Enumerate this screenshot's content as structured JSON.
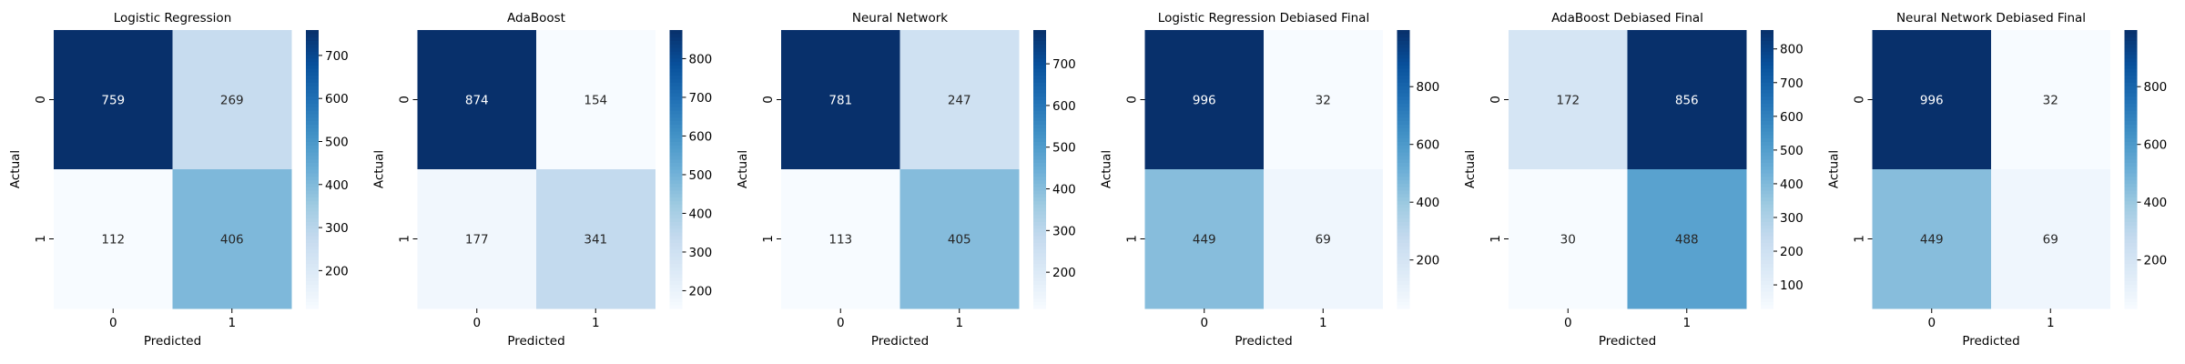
{
  "chart_data": [
    {
      "type": "heatmap",
      "title": "Logistic Regression",
      "xlabel": "Predicted",
      "ylabel": "Actual",
      "x_categories": [
        "0",
        "1"
      ],
      "y_categories": [
        "0",
        "1"
      ],
      "values": [
        [
          759,
          269
        ],
        [
          112,
          406
        ]
      ],
      "colormap": "Blues",
      "colorbar": {
        "ticks": [
          200,
          300,
          400,
          500,
          600,
          700
        ],
        "range": [
          112,
          759
        ]
      }
    },
    {
      "type": "heatmap",
      "title": "AdaBoost",
      "xlabel": "Predicted",
      "ylabel": "Actual",
      "x_categories": [
        "0",
        "1"
      ],
      "y_categories": [
        "0",
        "1"
      ],
      "values": [
        [
          874,
          154
        ],
        [
          177,
          341
        ]
      ],
      "colormap": "Blues",
      "colorbar": {
        "ticks": [
          200,
          300,
          400,
          500,
          600,
          700,
          800
        ],
        "range": [
          154,
          874
        ]
      }
    },
    {
      "type": "heatmap",
      "title": "Neural Network",
      "xlabel": "Predicted",
      "ylabel": "Actual",
      "x_categories": [
        "0",
        "1"
      ],
      "y_categories": [
        "0",
        "1"
      ],
      "values": [
        [
          781,
          247
        ],
        [
          113,
          405
        ]
      ],
      "colormap": "Blues",
      "colorbar": {
        "ticks": [
          200,
          300,
          400,
          500,
          600,
          700
        ],
        "range": [
          113,
          781
        ]
      }
    },
    {
      "type": "heatmap",
      "title": "Logistic Regression Debiased Final",
      "xlabel": "Predicted",
      "ylabel": "Actual",
      "x_categories": [
        "0",
        "1"
      ],
      "y_categories": [
        "0",
        "1"
      ],
      "values": [
        [
          996,
          32
        ],
        [
          449,
          69
        ]
      ],
      "colormap": "Blues",
      "colorbar": {
        "ticks": [
          200,
          400,
          600,
          800
        ],
        "range": [
          32,
          996
        ]
      }
    },
    {
      "type": "heatmap",
      "title": "AdaBoost Debiased Final",
      "xlabel": "Predicted",
      "ylabel": "Actual",
      "x_categories": [
        "0",
        "1"
      ],
      "y_categories": [
        "0",
        "1"
      ],
      "values": [
        [
          172,
          856
        ],
        [
          30,
          488
        ]
      ],
      "colormap": "Blues",
      "colorbar": {
        "ticks": [
          100,
          200,
          300,
          400,
          500,
          600,
          700,
          800
        ],
        "range": [
          30,
          856
        ]
      }
    },
    {
      "type": "heatmap",
      "title": "Neural Network Debiased Final",
      "xlabel": "Predicted",
      "ylabel": "Actual",
      "x_categories": [
        "0",
        "1"
      ],
      "y_categories": [
        "0",
        "1"
      ],
      "values": [
        [
          996,
          32
        ],
        [
          449,
          69
        ]
      ],
      "colormap": "Blues",
      "colorbar": {
        "ticks": [
          200,
          400,
          600,
          800
        ],
        "range": [
          32,
          996
        ]
      }
    }
  ]
}
